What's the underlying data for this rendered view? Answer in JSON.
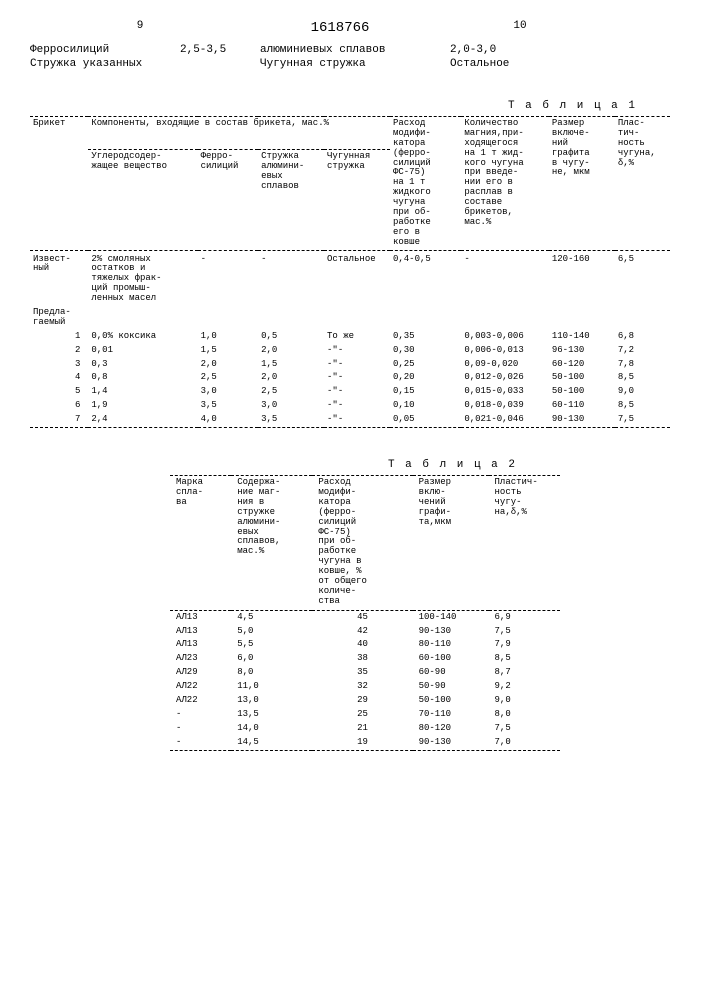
{
  "page": {
    "left_num": "9",
    "doc_num": "1618766",
    "right_num": "10"
  },
  "header": {
    "l1a": "Ферросилиций",
    "l1b": "2,5-3,5",
    "l1c": "алюминиевых сплавов",
    "l1d": "2,0-3,0",
    "l2a": "Стружка указанных",
    "l2b": "",
    "l2c": "Чугунная стружка",
    "l2d": "Остальное"
  },
  "table1": {
    "label": "Т а б л и ц а  1",
    "head": {
      "c1": "Брикет",
      "c2": "Компоненты, входящие в состав брикета, мас.%",
      "c2a": "Углеродсодер-\nжащее вещество",
      "c2b": "Ферро-\nсилиций",
      "c2c": "Стружка\nалюмини-\nевых\nсплавов",
      "c2d": "Чугунная\nстружка",
      "c3": "Расход\nмодифи-\nкатора\n(ферро-\nсилиций\nФС-75)\nна 1 т\nжидкого\nчугуна\nпри об-\nработке\nего в\nковше",
      "c4": "Количество\nмагния,при-\nходящегося\nна 1 т жид-\nкого чугуна\nпри введе-\nнии его в\nрасплав в\nсоставе\nбрикетов,\nмас.%",
      "c5": "Размер\nвключе-\nний\nграфита\nв чугу-\nне, мкм",
      "c6": "Плас-\nтич-\nность\nчугуна,\nδ,%"
    },
    "known": {
      "label": "Извест-\nный",
      "desc": "2% смоляных\nостатков и\nтяжелых фрак-\nций промыш-\nленных масел",
      "b": "-",
      "c": "-",
      "d": "Остальное",
      "e": "0,4-0,5",
      "f": "-",
      "g": "120-160",
      "h": "6,5"
    },
    "prop_label": "Предла-\nгаемый",
    "rows": [
      {
        "n": "1",
        "a": "0,0% коксика",
        "b": "1,0",
        "c": "0,5",
        "d": "То же",
        "e": "0,35",
        "f": "0,003-0,006",
        "g": "110-140",
        "h": "6,8"
      },
      {
        "n": "2",
        "a": "0,01",
        "b": "1,5",
        "c": "2,0",
        "d": "-\"-",
        "e": "0,30",
        "f": "0,006-0,013",
        "g": "96-130",
        "h": "7,2"
      },
      {
        "n": "3",
        "a": "0,3",
        "b": "2,0",
        "c": "1,5",
        "d": "-\"-",
        "e": "0,25",
        "f": "0,09-0,020",
        "g": "60-120",
        "h": "7,8"
      },
      {
        "n": "4",
        "a": "0,8",
        "b": "2,5",
        "c": "2,0",
        "d": "-\"-",
        "e": "0,20",
        "f": "0,012-0,026",
        "g": "50-100",
        "h": "8,5"
      },
      {
        "n": "5",
        "a": "1,4",
        "b": "3,0",
        "c": "2,5",
        "d": "-\"-",
        "e": "0,15",
        "f": "0,015-0,033",
        "g": "50-100",
        "h": "9,0"
      },
      {
        "n": "6",
        "a": "1,9",
        "b": "3,5",
        "c": "3,0",
        "d": "-\"-",
        "e": "0,10",
        "f": "0,018-0,039",
        "g": "60-110",
        "h": "8,5"
      },
      {
        "n": "7",
        "a": "2,4",
        "b": "4,0",
        "c": "3,5",
        "d": "-\"-",
        "e": "0,05",
        "f": "0,021-0,046",
        "g": "90-130",
        "h": "7,5"
      }
    ]
  },
  "table2": {
    "label": "Т а б л и ц а  2",
    "head": {
      "c1": "Марка\nспла-\nва",
      "c2": "Содержа-\nние маг-\nния в\nстружке\nалюмини-\nевых\nсплавов,\nмас.%",
      "c3": "Расход\nмодифи-\nкатора\n(ферро-\nсилиций\nФС-75)\nпри об-\nработке\nчугуна в\nковше, %\nот общего\nколиче-\nства",
      "c4": "Размер\nвклю-\nчений\nграфи-\nта,мкм",
      "c5": "Пластич-\nность\nчугу-\nна,δ,%"
    },
    "rows": [
      {
        "a": "АЛ13",
        "b": "4,5",
        "c": "45",
        "d": "100-140",
        "e": "6,9"
      },
      {
        "a": "АЛ13",
        "b": "5,0",
        "c": "42",
        "d": "90-130",
        "e": "7,5"
      },
      {
        "a": "АЛ13",
        "b": "5,5",
        "c": "40",
        "d": "80-110",
        "e": "7,9"
      },
      {
        "a": "АЛ23",
        "b": "6,0",
        "c": "38",
        "d": "60-100",
        "e": "8,5"
      },
      {
        "a": "АЛ29",
        "b": "8,0",
        "c": "35",
        "d": "60-90",
        "e": "8,7"
      },
      {
        "a": "АЛ22",
        "b": "11,0",
        "c": "32",
        "d": "50-90",
        "e": "9,2"
      },
      {
        "a": "АЛ22",
        "b": "13,0",
        "c": "29",
        "d": "50-100",
        "e": "9,0"
      },
      {
        "a": "-",
        "b": "13,5",
        "c": "25",
        "d": "70-110",
        "e": "8,0"
      },
      {
        "a": "-",
        "b": "14,0",
        "c": "21",
        "d": "80-120",
        "e": "7,5"
      },
      {
        "a": "-",
        "b": "14,5",
        "c": "19",
        "d": "90-130",
        "e": "7,0"
      }
    ]
  }
}
